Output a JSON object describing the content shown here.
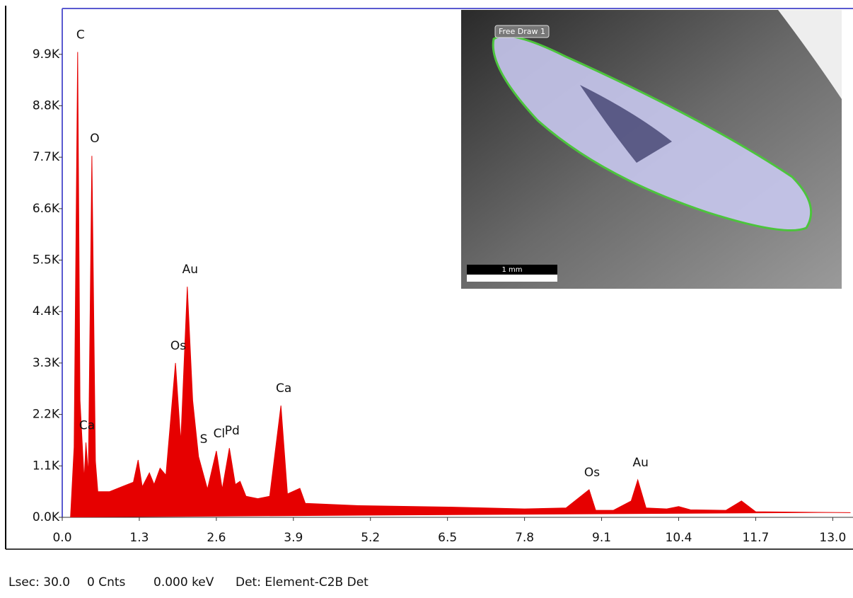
{
  "chart_data": {
    "type": "spectrum",
    "color": "#e60000",
    "x": [
      0.14,
      0.2,
      0.26,
      0.3,
      0.34,
      0.37,
      0.4,
      0.44,
      0.5,
      0.56,
      0.6,
      0.8,
      1.0,
      1.2,
      1.28,
      1.35,
      1.47,
      1.55,
      1.65,
      1.75,
      1.91,
      2.0,
      2.11,
      2.2,
      2.3,
      2.45,
      2.6,
      2.7,
      2.82,
      2.92,
      3.0,
      3.1,
      3.3,
      3.5,
      3.69,
      3.8,
      4.01,
      4.1,
      5.0,
      6.5,
      7.8,
      8.5,
      8.89,
      9.0,
      9.3,
      9.6,
      9.71,
      9.85,
      10.2,
      10.4,
      10.6,
      11.2,
      11.46,
      11.7,
      13.3
    ],
    "y": [
      0,
      1500,
      9950,
      2500,
      1500,
      800,
      1600,
      900,
      7730,
      1200,
      550,
      550,
      650,
      750,
      1225,
      650,
      950,
      700,
      1050,
      900,
      3300,
      1600,
      4930,
      2500,
      1300,
      600,
      1420,
      600,
      1480,
      700,
      770,
      450,
      400,
      450,
      2390,
      500,
      620,
      300,
      250,
      220,
      180,
      200,
      590,
      150,
      150,
      350,
      800,
      200,
      180,
      230,
      160,
      150,
      350,
      120,
      100
    ],
    "xlim": [
      0,
      13.33
    ],
    "ylim": [
      0,
      10880
    ],
    "xticks": [
      {
        "value": 0,
        "label": "0.0"
      },
      1.3,
      2.6,
      3.9,
      5.2,
      6.5,
      7.8,
      9.1,
      10.4,
      11.7,
      {
        "value": 13,
        "label": "13.0"
      }
    ],
    "yticks": [
      {
        "value": 0,
        "label": "0.0K"
      },
      {
        "value": 1100,
        "label": "1.1K"
      },
      {
        "value": 2200,
        "label": "2.2K"
      },
      {
        "value": 3300,
        "label": "3.3K"
      },
      {
        "value": 4400,
        "label": "4.4K"
      },
      {
        "value": 5500,
        "label": "5.5K"
      },
      {
        "value": 6600,
        "label": "6.6K"
      },
      {
        "value": 7700,
        "label": "7.7K"
      },
      {
        "value": 8800,
        "label": "8.8K"
      },
      {
        "value": 9900,
        "label": "9.9K"
      }
    ],
    "peak_labels": [
      {
        "label": "C",
        "x": 0.26,
        "y": 9950
      },
      {
        "label": "Ca",
        "x": 0.37,
        "y": 1600
      },
      {
        "label": "O",
        "x": 0.5,
        "y": 7730
      },
      {
        "label": "Os",
        "x": 1.91,
        "y": 3300
      },
      {
        "label": "Au",
        "x": 2.11,
        "y": 4930
      },
      {
        "label": "S",
        "x": 2.34,
        "y": 1300
      },
      {
        "label": "Cl",
        "x": 2.6,
        "y": 1420
      },
      {
        "label": "Pd",
        "x": 2.82,
        "y": 1480
      },
      {
        "label": "Ca",
        "x": 3.69,
        "y": 2390
      },
      {
        "label": "Os",
        "x": 8.89,
        "y": 590
      },
      {
        "label": "Au",
        "x": 9.71,
        "y": 800
      }
    ]
  },
  "inset": {
    "roi_label": "Free Draw 1",
    "scale_bar": "1 mm"
  },
  "status_bar": {
    "live_time": "Lsec: 30.0",
    "counts": "0 Cnts",
    "energy": "0.000 keV",
    "detector": "Det: Element-C2B Det"
  }
}
